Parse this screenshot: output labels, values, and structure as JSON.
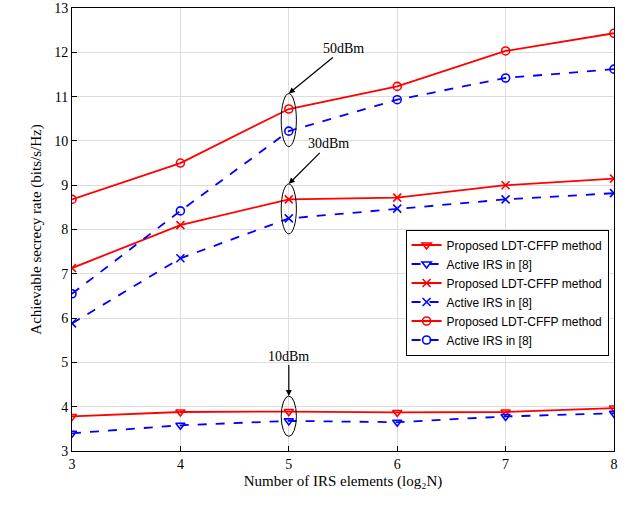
{
  "chart_data": {
    "type": "line",
    "x_label": "Number of IRS elements (log₂N)",
    "y_label": "Achievable secrecy rate (bits/s/Hz)",
    "x": [
      3,
      4,
      5,
      6,
      7,
      8
    ],
    "xlim": [
      3,
      8
    ],
    "xticks": [
      3,
      4,
      5,
      6,
      7,
      8
    ],
    "ylim": [
      3,
      13
    ],
    "yticks": [
      3,
      4,
      5,
      6,
      7,
      8,
      9,
      10,
      11,
      12,
      13
    ],
    "grid": true,
    "legend": "right",
    "series": [
      {
        "name": "Proposed LDT-CFFP method",
        "color": "#ff0000",
        "marker": "triangle-down",
        "line_style": "solid",
        "values": [
          3.78,
          3.88,
          3.89,
          3.87,
          3.88,
          3.97
        ]
      },
      {
        "name": "Active IRS in [8]",
        "color": "#0000ff",
        "marker": "triangle-down",
        "line_style": "dash",
        "values": [
          3.4,
          3.58,
          3.68,
          3.65,
          3.78,
          3.85
        ]
      },
      {
        "name": "Proposed LDT-CFFP method",
        "color": "#ff0000",
        "marker": "x",
        "line_style": "solid",
        "values": [
          7.13,
          8.1,
          8.68,
          8.72,
          9.0,
          9.15
        ]
      },
      {
        "name": "Active IRS in [8]",
        "color": "#0000ff",
        "marker": "x",
        "line_style": "dash",
        "values": [
          5.88,
          7.35,
          8.25,
          8.47,
          8.68,
          8.82
        ]
      },
      {
        "name": "Proposed LDT-CFFP method",
        "color": "#ff0000",
        "marker": "circle",
        "line_style": "solid",
        "values": [
          8.68,
          9.5,
          10.72,
          11.23,
          12.03,
          12.43
        ]
      },
      {
        "name": "Active IRS in [8]",
        "color": "#0000ff",
        "marker": "circle",
        "line_style": "dash",
        "values": [
          6.55,
          8.42,
          10.22,
          10.93,
          11.42,
          11.62
        ]
      }
    ],
    "annotations": [
      {
        "text": "10dBm",
        "x": 5
      },
      {
        "text": "30dBm",
        "x": 5
      },
      {
        "text": "50dBm",
        "x": 5
      }
    ]
  }
}
